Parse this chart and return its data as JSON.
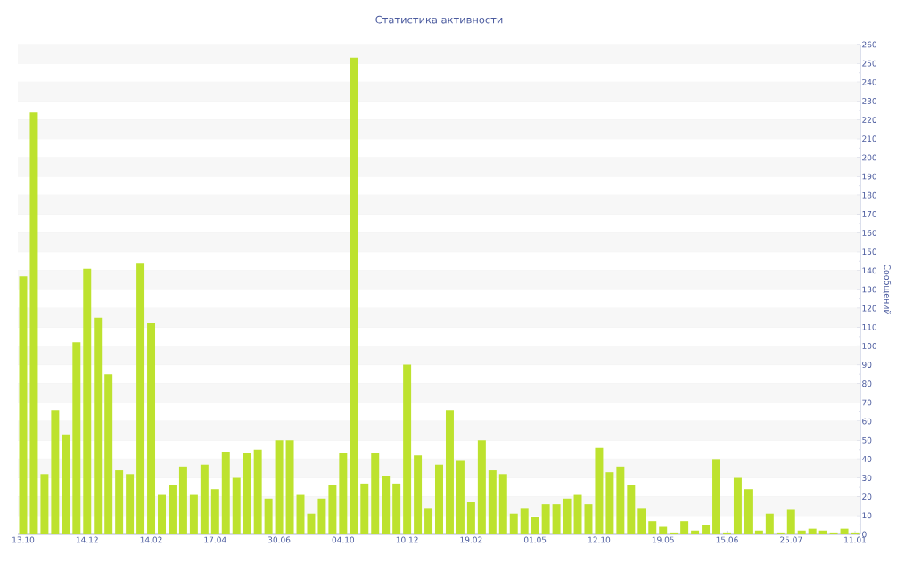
{
  "chart_data": {
    "type": "bar",
    "title": "Статистика активности",
    "ylabel": "Сообщений",
    "categories": [
      "13.10",
      null,
      null,
      null,
      null,
      null,
      "14.12",
      null,
      null,
      null,
      null,
      null,
      "14.02",
      null,
      null,
      null,
      null,
      null,
      "17.04",
      null,
      null,
      null,
      null,
      null,
      "30.06",
      null,
      null,
      null,
      null,
      null,
      "04.10",
      null,
      null,
      null,
      null,
      null,
      "10.12",
      null,
      null,
      null,
      null,
      null,
      "19.02",
      null,
      null,
      null,
      null,
      null,
      "01.05",
      null,
      null,
      null,
      null,
      null,
      "12.10",
      null,
      null,
      null,
      null,
      null,
      "19.05",
      null,
      null,
      null,
      null,
      null,
      "15.06",
      null,
      null,
      null,
      null,
      null,
      "25.07",
      null,
      null,
      null,
      null,
      null,
      "11.01"
    ],
    "values": [
      137,
      224,
      32,
      66,
      53,
      102,
      141,
      115,
      85,
      34,
      32,
      144,
      112,
      21,
      26,
      36,
      21,
      37,
      24,
      44,
      30,
      43,
      45,
      19,
      50,
      50,
      21,
      11,
      19,
      26,
      43,
      253,
      27,
      43,
      31,
      27,
      90,
      42,
      14,
      37,
      66,
      39,
      17,
      50,
      34,
      32,
      11,
      14,
      9,
      16,
      16,
      19,
      21,
      16,
      46,
      33,
      36,
      26,
      14,
      7,
      4,
      1,
      7,
      2,
      5,
      40,
      1,
      30,
      24,
      2,
      11,
      1,
      13,
      2,
      3,
      2,
      1,
      3,
      1
    ],
    "color": "#bde22e",
    "ylim": [
      0,
      260
    ],
    "yticks": [
      0,
      10,
      20,
      30,
      40,
      50,
      60,
      70,
      80,
      90,
      100,
      110,
      120,
      130,
      140,
      150,
      160,
      170,
      180,
      190,
      200,
      210,
      220,
      230,
      240,
      250,
      260
    ],
    "grid": "y"
  }
}
